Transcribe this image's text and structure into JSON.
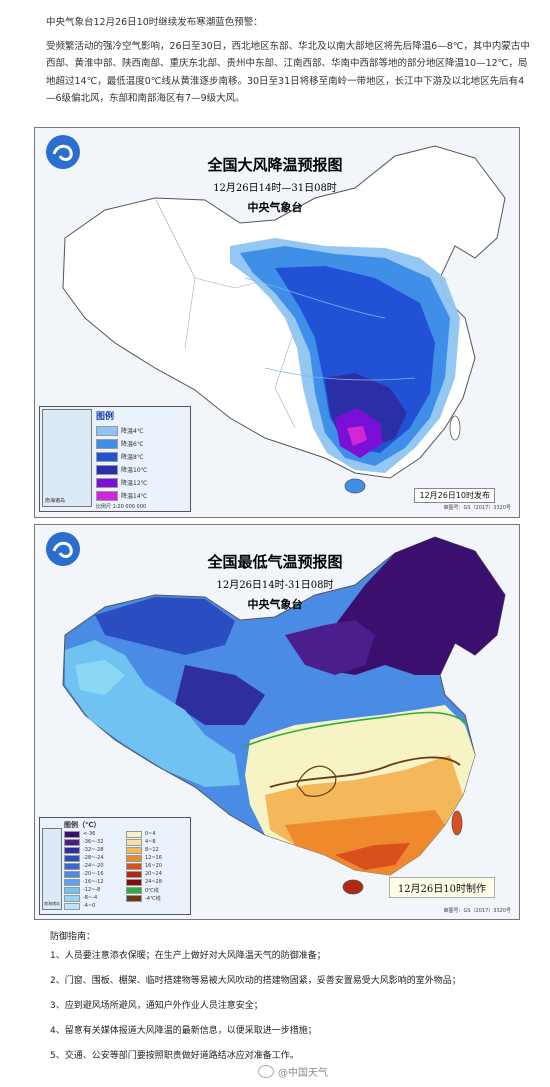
{
  "intro": {
    "p1": "中央气象台12月26日10时继续发布寒潮蓝色预警：",
    "p2": "受频繁活动的强冷空气影响，26日至30日，西北地区东部、华北及以南大部地区将先后降温6—8℃，其中内蒙古中西部、黄淮中部、陕西南部、重庆东北部、贵州中东部、江南西部、华南中西部等地的部分地区降温10—12℃，局地超过14℃，最低温度0℃线从黄淮逐步南移。30日至31日将移至南岭一带地区，长江中下游及以北地区先后有4—6级偏北风，东部和南部海区有7—9级大风。"
  },
  "map1": {
    "title": "全国大风降温预报图",
    "period": "12月26日14时—31日08时",
    "agency": "中央气象台",
    "legend_title": "图例",
    "legend": [
      {
        "label": "降温4℃",
        "color": "#8fc4f2"
      },
      {
        "label": "降温6℃",
        "color": "#3f8ee8"
      },
      {
        "label": "降温8℃",
        "color": "#2152d6"
      },
      {
        "label": "降温10℃",
        "color": "#2a2fa8"
      },
      {
        "label": "降温12℃",
        "color": "#7a10d6"
      },
      {
        "label": "降温14℃",
        "color": "#d028d8"
      }
    ],
    "scale": "比例尺 1:20 000 000",
    "inset_caption": "南海诸岛",
    "stamp": "12月26日10时发布",
    "map_no": "审图号：GS（2017）3320号"
  },
  "map2": {
    "title": "全国最低气温预报图",
    "period": "12月26日14时-31日08时",
    "agency": "中央气象台",
    "legend_title": "图例（℃）",
    "legend_left": [
      {
        "label": "<-36",
        "color": "#3a0f6e"
      },
      {
        "label": "-36~-32",
        "color": "#4b1e8e"
      },
      {
        "label": "-32~-28",
        "color": "#2e2e9e"
      },
      {
        "label": "-28~-24",
        "color": "#2b4dc2"
      },
      {
        "label": "-24~-20",
        "color": "#3a6ad6"
      },
      {
        "label": "-20~-16",
        "color": "#4a8be6"
      },
      {
        "label": "-16~-12",
        "color": "#5aa6ee"
      },
      {
        "label": "-12~-8",
        "color": "#6fc2f2"
      },
      {
        "label": "-8~-4",
        "color": "#8ad8f4"
      },
      {
        "label": "-4~0",
        "color": "#b8e8f6"
      }
    ],
    "legend_right": [
      {
        "label": "0~4",
        "color": "#f6f3c4"
      },
      {
        "label": "4~8",
        "color": "#f6e2a0"
      },
      {
        "label": "8~12",
        "color": "#f4b85a"
      },
      {
        "label": "12~16",
        "color": "#ee8a2c"
      },
      {
        "label": "16~20",
        "color": "#d8501c"
      },
      {
        "label": "20~24",
        "color": "#b02a12"
      },
      {
        "label": "24~28",
        "color": "#7e0f0a"
      },
      {
        "label": "0℃线",
        "color": "#2eae3e"
      },
      {
        "label": "-4℃线",
        "color": "#6a3a1a"
      }
    ],
    "stamp": "12月26日10时制作",
    "map_no": "审图号：GS（2017）3320号",
    "inset_caption": "南海诸岛"
  },
  "tips": {
    "heading": "防御指南：",
    "items": [
      "1、人员要注意添衣保暖；在生产上做好对大风降温天气的防御准备；",
      "2、门窗、围板、棚架、临时搭建物等易被大风吹动的搭建物固紧，妥善安置易受大风影响的室外物品；",
      "3、应到避风场所避风，通知户外作业人员注意安全；",
      "4、留意有关媒体报道大风降温的最新信息，以便采取进一步措施；",
      "5、交通、公安等部门要按照职责做好道路结冰应对准备工作。"
    ]
  },
  "footer": {
    "watermark": "@中国天气"
  }
}
